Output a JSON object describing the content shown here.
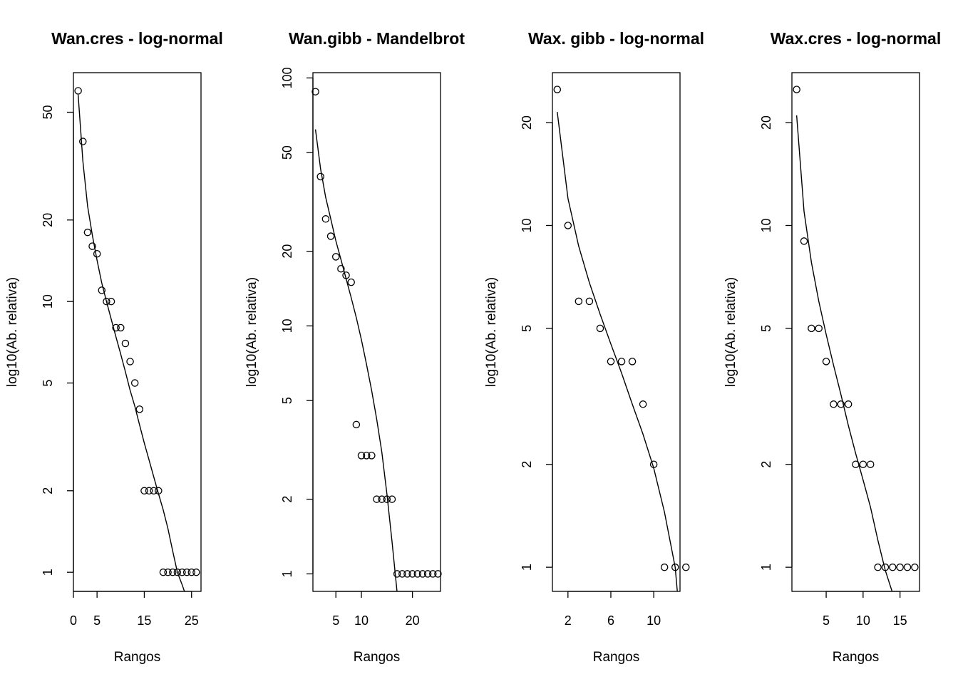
{
  "chart_data": [
    {
      "type": "scatter",
      "title": "Wan.cres - log-normal",
      "xlabel": "Rangos",
      "ylabel": "log10(Ab. relativa)",
      "y_scale": "log",
      "xlim": [
        0,
        27
      ],
      "ylim": [
        0.85,
        70
      ],
      "xticks": [
        0,
        5,
        15,
        25
      ],
      "yticks": [
        1,
        2,
        5,
        10,
        20,
        50
      ],
      "x": [
        1,
        2,
        3,
        4,
        5,
        6,
        7,
        8,
        9,
        10,
        11,
        12,
        13,
        14,
        15,
        16,
        17,
        18,
        19,
        20,
        21,
        22,
        23,
        24,
        25,
        26
      ],
      "y": [
        60,
        39,
        18,
        16,
        15,
        11,
        10,
        10,
        8,
        8,
        7,
        6,
        5,
        4,
        2,
        2,
        2,
        2,
        1,
        1,
        1,
        1,
        1,
        1,
        1,
        1
      ],
      "fit": {
        "x": [
          1,
          2,
          3,
          4,
          5,
          6,
          7,
          8,
          9,
          10,
          11,
          12,
          13,
          14,
          15,
          16,
          17,
          18,
          19,
          20,
          21,
          22,
          23,
          23.6
        ],
        "y": [
          58,
          33,
          22.5,
          17.6,
          14.2,
          11.7,
          10,
          8.6,
          7.4,
          6.4,
          5.5,
          4.7,
          4.1,
          3.5,
          3.0,
          2.6,
          2.25,
          1.95,
          1.7,
          1.45,
          1.2,
          1.0,
          0.9,
          0.84
        ]
      }
    },
    {
      "type": "scatter",
      "title": "Wan.gibb - Mandelbrot",
      "xlabel": "Rangos",
      "ylabel": "log10(Ab. relativa)",
      "y_scale": "log",
      "xlim": [
        0.5,
        25.5
      ],
      "ylim": [
        0.85,
        105
      ],
      "xticks": [
        5,
        10,
        20
      ],
      "yticks": [
        1,
        2,
        5,
        10,
        20,
        50,
        100
      ],
      "x": [
        1,
        2,
        3,
        4,
        5,
        6,
        7,
        8,
        9,
        10,
        11,
        12,
        13,
        14,
        15,
        16,
        17,
        18,
        19,
        20,
        21,
        22,
        23,
        24,
        25
      ],
      "y": [
        88,
        40,
        27,
        23,
        19,
        17,
        16,
        15,
        4,
        3,
        3,
        3,
        2,
        2,
        2,
        2,
        1,
        1,
        1,
        1,
        1,
        1,
        1,
        1,
        1
      ],
      "fit": {
        "x": [
          1,
          2,
          3,
          4,
          5,
          6,
          7,
          8,
          9,
          10,
          11,
          12,
          13,
          14,
          15,
          16,
          17
        ],
        "y": [
          62,
          43,
          33,
          27,
          22,
          18.5,
          15.5,
          13,
          10.8,
          8.8,
          7.0,
          5.5,
          4.2,
          3.1,
          2.1,
          1.35,
          0.84
        ]
      }
    },
    {
      "type": "scatter",
      "title": "Wax. gibb - log-normal",
      "xlabel": "Rangos",
      "ylabel": "log10(Ab. relativa)",
      "y_scale": "log",
      "xlim": [
        0.55,
        12.45
      ],
      "ylim": [
        0.85,
        28
      ],
      "xticks": [
        2,
        6,
        10
      ],
      "yticks": [
        1,
        2,
        5,
        10,
        20
      ],
      "x": [
        1,
        2,
        3,
        4,
        5,
        6,
        7,
        8,
        9,
        10,
        11,
        12,
        13
      ],
      "y": [
        25,
        10,
        6,
        6,
        5,
        4,
        4,
        4,
        3,
        2,
        1,
        1,
        1
      ],
      "fit": {
        "x": [
          1,
          2,
          3,
          4,
          5,
          6,
          7,
          8,
          9,
          10,
          11,
          12,
          12.2
        ],
        "y": [
          21.5,
          12,
          8.7,
          6.8,
          5.5,
          4.5,
          3.7,
          3.0,
          2.45,
          1.95,
          1.45,
          1.0,
          0.85
        ]
      }
    },
    {
      "type": "scatter",
      "title": "Wax.cres - log-normal",
      "xlabel": "Rangos",
      "ylabel": "log10(Ab. relativa)",
      "y_scale": "log",
      "xlim": [
        0.36,
        17.64
      ],
      "ylim": [
        0.85,
        28
      ],
      "xticks": [
        5,
        10,
        15
      ],
      "yticks": [
        1,
        2,
        5,
        10,
        20
      ],
      "x": [
        1,
        2,
        3,
        4,
        5,
        6,
        7,
        8,
        9,
        10,
        11,
        12,
        13,
        14,
        15,
        16,
        17
      ],
      "y": [
        25,
        9,
        5,
        5,
        4,
        3,
        3,
        3,
        2,
        2,
        2,
        1,
        1,
        1,
        1,
        1,
        1
      ],
      "fit": {
        "x": [
          1,
          2,
          3,
          4,
          5,
          6,
          7,
          8,
          9,
          10,
          11,
          12,
          13,
          14
        ],
        "y": [
          21,
          11,
          7.8,
          6.0,
          4.8,
          3.9,
          3.2,
          2.6,
          2.15,
          1.8,
          1.5,
          1.2,
          0.98,
          0.84
        ]
      }
    }
  ],
  "colors": {
    "ink": "#000000",
    "background": "#ffffff"
  }
}
